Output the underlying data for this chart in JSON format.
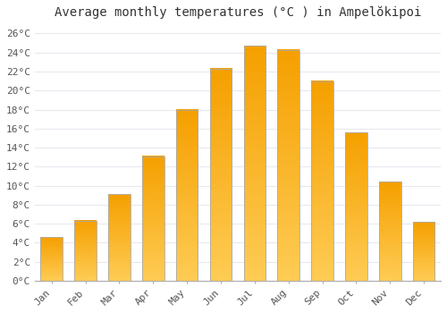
{
  "months": [
    "Jan",
    "Feb",
    "Mar",
    "Apr",
    "May",
    "Jun",
    "Jul",
    "Aug",
    "Sep",
    "Oct",
    "Nov",
    "Dec"
  ],
  "temperatures": [
    4.6,
    6.3,
    9.1,
    13.1,
    18.0,
    22.3,
    24.7,
    24.3,
    21.0,
    15.6,
    10.4,
    6.2
  ],
  "bar_color": "#FFA726",
  "bar_edge_color": "#aaaaaa",
  "title": "Average monthly temperatures (°C ) in Ampelŏkipoi",
  "ylim_min": 0,
  "ylim_max": 27,
  "yticks": [
    0,
    2,
    4,
    6,
    8,
    10,
    12,
    14,
    16,
    18,
    20,
    22,
    24,
    26
  ],
  "ytick_labels": [
    "0°C",
    "2°C",
    "4°C",
    "6°C",
    "8°C",
    "10°C",
    "12°C",
    "14°C",
    "16°C",
    "18°C",
    "20°C",
    "22°C",
    "24°C",
    "26°C"
  ],
  "title_fontsize": 10,
  "tick_fontsize": 8,
  "background_color": "#ffffff",
  "plot_bg_color": "#ffffff",
  "grid_color": "#e8e8f0",
  "bar_width": 0.65,
  "bar_bottom_color": "#F5A623",
  "bar_top_color": "#FFD580"
}
